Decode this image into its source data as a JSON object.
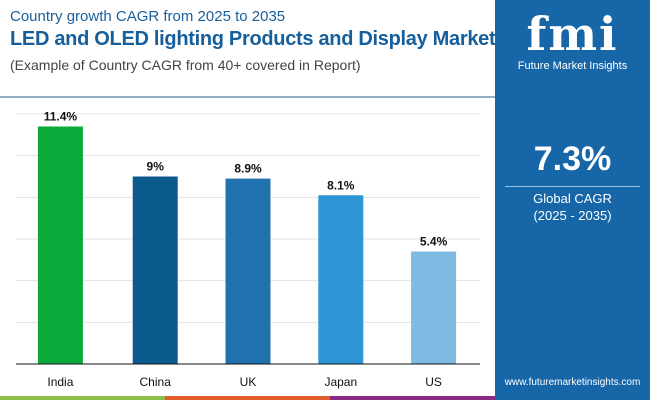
{
  "header": {
    "subtitle": "Country growth CAGR from 2025 to 2035",
    "title": "LED and OLED lighting Products and Display Market",
    "note": "(Example of Country CAGR from 40+ covered in Report)"
  },
  "panel": {
    "logo_text": "fmi",
    "brand": "Future Market Insights",
    "value": "7.3%",
    "label": "Global CAGR",
    "period": "(2025 - 2035)",
    "url": "www.futuremarketinsights.com",
    "bg_color": "#1766a8"
  },
  "chart_data": {
    "type": "bar",
    "categories": [
      "India",
      "China",
      "UK",
      "Japan",
      "US"
    ],
    "values": [
      11.4,
      9,
      8.9,
      8.1,
      5.4
    ],
    "labels": [
      "11.4%",
      "9%",
      "8.9%",
      "8.1%",
      "5.4%"
    ],
    "colors": [
      "#0aa93a",
      "#0b5a8e",
      "#1f72ad",
      "#2e96d6",
      "#7dbbe3"
    ],
    "ylim": [
      0,
      12
    ],
    "grid": true,
    "title": "",
    "xlabel": "",
    "ylabel": ""
  }
}
